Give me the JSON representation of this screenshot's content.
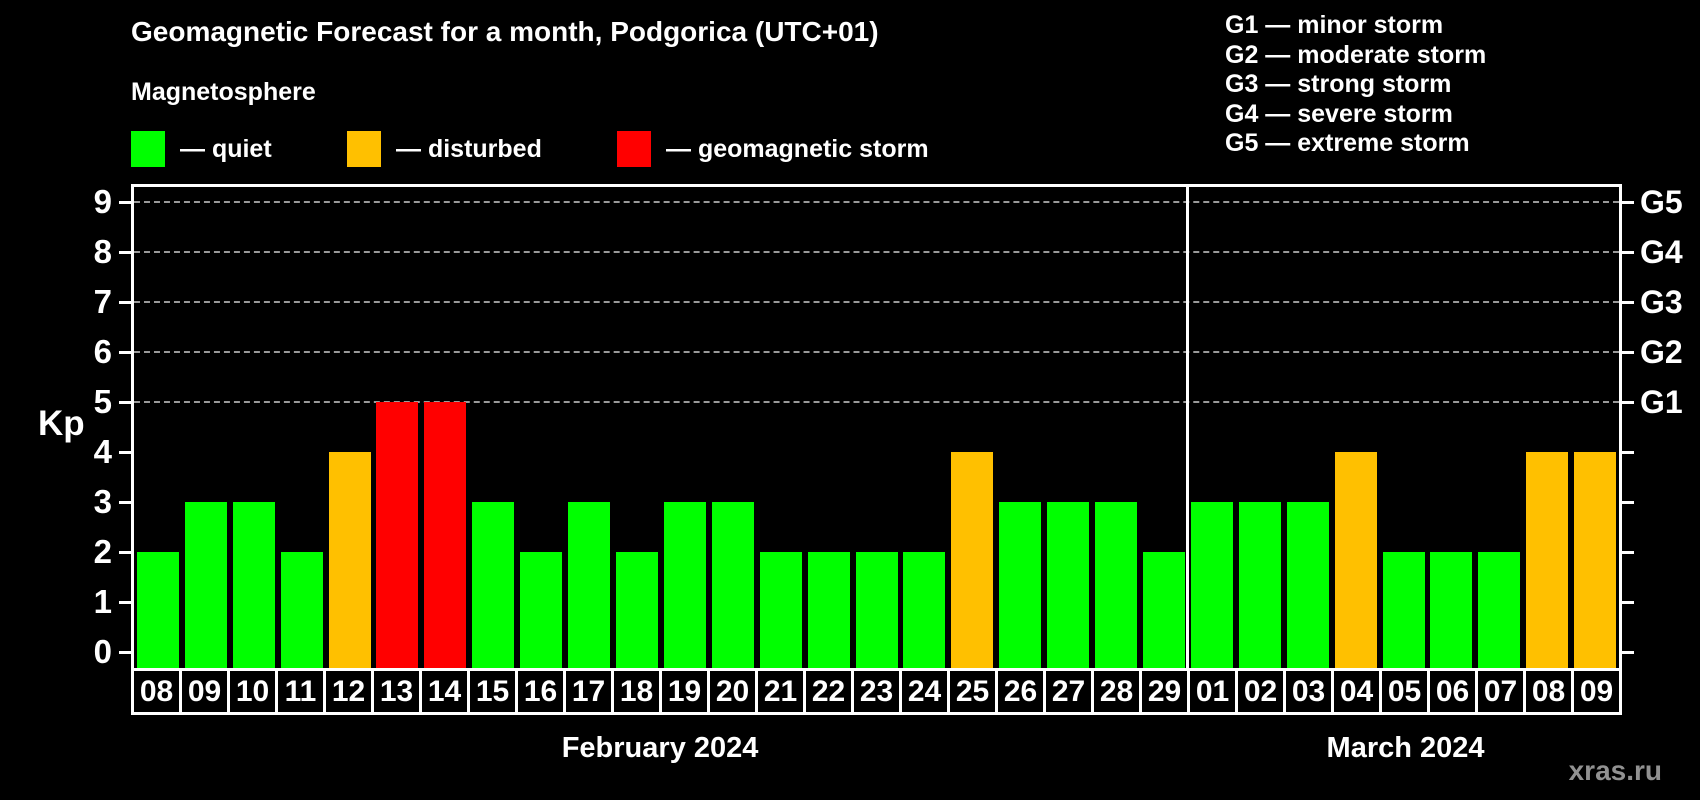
{
  "header": {
    "title": "Geomagnetic Forecast for a month, Podgorica (UTC+01)",
    "subtitle": "Magnetosphere"
  },
  "legend": {
    "items": [
      {
        "name": "quiet",
        "label": "— quiet",
        "color": "#00ff00",
        "x": 131
      },
      {
        "name": "disturbed",
        "label": "— disturbed",
        "color": "#ffc000",
        "x": 347
      },
      {
        "name": "storm",
        "label": "— geomagnetic storm",
        "color": "#ff0000",
        "x": 617
      }
    ]
  },
  "g_legend": {
    "items": [
      "G1 — minor storm",
      "G2 — moderate storm",
      "G3 — strong storm",
      "G4 — severe storm",
      "G5 — extreme storm"
    ]
  },
  "watermark": "xras.ru",
  "chart_data": {
    "type": "bar",
    "title": "Geomagnetic Forecast for a month, Podgorica (UTC+01)",
    "ylabel": "Kp",
    "ylim": [
      0,
      9
    ],
    "yticks": [
      0,
      1,
      2,
      3,
      4,
      5,
      6,
      7,
      8,
      9
    ],
    "gridlines_kp": [
      5,
      6,
      7,
      8,
      9
    ],
    "grid": "horizontal dashed at storm levels only",
    "legend_position": "top-left swatches, G-scale list top-right, G labels on right axis",
    "right_axis_labels": [
      {
        "text": "G1",
        "kp": 5
      },
      {
        "text": "G2",
        "kp": 6
      },
      {
        "text": "G3",
        "kp": 7
      },
      {
        "text": "G4",
        "kp": 8
      },
      {
        "text": "G5",
        "kp": 9
      }
    ],
    "status_colors": {
      "quiet": "#00ff00",
      "disturbed": "#ffc000",
      "storm": "#ff0000"
    },
    "months": [
      {
        "label": "February 2024",
        "days": [
          {
            "date": "08",
            "kp": 2,
            "status": "quiet"
          },
          {
            "date": "09",
            "kp": 3,
            "status": "quiet"
          },
          {
            "date": "10",
            "kp": 3,
            "status": "quiet"
          },
          {
            "date": "11",
            "kp": 2,
            "status": "quiet"
          },
          {
            "date": "12",
            "kp": 4,
            "status": "disturbed"
          },
          {
            "date": "13",
            "kp": 5,
            "status": "storm"
          },
          {
            "date": "14",
            "kp": 5,
            "status": "storm"
          },
          {
            "date": "15",
            "kp": 3,
            "status": "quiet"
          },
          {
            "date": "16",
            "kp": 2,
            "status": "quiet"
          },
          {
            "date": "17",
            "kp": 3,
            "status": "quiet"
          },
          {
            "date": "18",
            "kp": 2,
            "status": "quiet"
          },
          {
            "date": "19",
            "kp": 3,
            "status": "quiet"
          },
          {
            "date": "20",
            "kp": 3,
            "status": "quiet"
          },
          {
            "date": "21",
            "kp": 2,
            "status": "quiet"
          },
          {
            "date": "22",
            "kp": 2,
            "status": "quiet"
          },
          {
            "date": "23",
            "kp": 2,
            "status": "quiet"
          },
          {
            "date": "24",
            "kp": 2,
            "status": "quiet"
          },
          {
            "date": "25",
            "kp": 4,
            "status": "disturbed"
          },
          {
            "date": "26",
            "kp": 3,
            "status": "quiet"
          },
          {
            "date": "27",
            "kp": 3,
            "status": "quiet"
          },
          {
            "date": "28",
            "kp": 3,
            "status": "quiet"
          },
          {
            "date": "29",
            "kp": 2,
            "status": "quiet"
          }
        ]
      },
      {
        "label": "March 2024",
        "days": [
          {
            "date": "01",
            "kp": 3,
            "status": "quiet"
          },
          {
            "date": "02",
            "kp": 3,
            "status": "quiet"
          },
          {
            "date": "03",
            "kp": 3,
            "status": "quiet"
          },
          {
            "date": "04",
            "kp": 4,
            "status": "disturbed"
          },
          {
            "date": "05",
            "kp": 2,
            "status": "quiet"
          },
          {
            "date": "06",
            "kp": 2,
            "status": "quiet"
          },
          {
            "date": "07",
            "kp": 2,
            "status": "quiet"
          },
          {
            "date": "08",
            "kp": 4,
            "status": "disturbed"
          },
          {
            "date": "09",
            "kp": 4,
            "status": "disturbed"
          }
        ]
      }
    ]
  }
}
